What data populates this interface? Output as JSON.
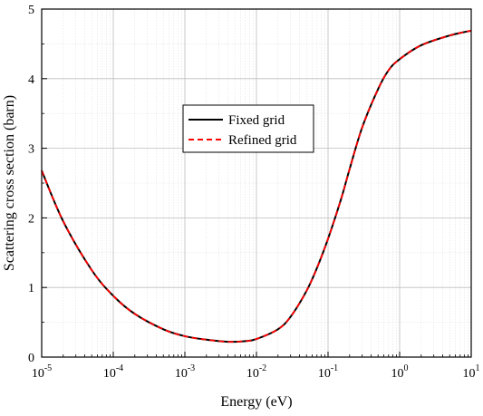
{
  "chart_data": {
    "type": "line",
    "title": "",
    "xlabel": "Energy (eV)",
    "ylabel": "Scattering cross section (barn)",
    "xscale": "log",
    "xlim": [
      1e-05,
      10
    ],
    "ylim": [
      0,
      5
    ],
    "grid": true,
    "legend_position": "center-left",
    "x_tick_labels": [
      {
        "base": "10",
        "exp": "-5"
      },
      {
        "base": "10",
        "exp": "-4"
      },
      {
        "base": "10",
        "exp": "-3"
      },
      {
        "base": "10",
        "exp": "-2"
      },
      {
        "base": "10",
        "exp": "-1"
      },
      {
        "base": "10",
        "exp": "0"
      },
      {
        "base": "10",
        "exp": "1"
      }
    ],
    "y_tick_labels": [
      "0",
      "1",
      "2",
      "3",
      "4",
      "5"
    ],
    "x": [
      1e-05,
      2e-05,
      5e-05,
      0.0001,
      0.0002,
      0.0005,
      0.001,
      0.002,
      0.004,
      0.007,
      0.01,
      0.02,
      0.03,
      0.05,
      0.07,
      0.1,
      0.15,
      0.2,
      0.3,
      0.5,
      0.7,
      1,
      2,
      5,
      10
    ],
    "series": [
      {
        "name": "Fixed grid",
        "color": "#000000",
        "dash": "solid",
        "values": [
          2.68,
          1.95,
          1.25,
          0.88,
          0.62,
          0.4,
          0.3,
          0.25,
          0.22,
          0.23,
          0.26,
          0.4,
          0.58,
          0.95,
          1.28,
          1.7,
          2.25,
          2.7,
          3.3,
          3.85,
          4.12,
          4.28,
          4.48,
          4.62,
          4.69
        ]
      },
      {
        "name": "Refined grid",
        "color": "#ff0000",
        "dash": "dashed",
        "values": [
          2.68,
          1.95,
          1.25,
          0.88,
          0.62,
          0.4,
          0.3,
          0.25,
          0.22,
          0.23,
          0.26,
          0.4,
          0.58,
          0.95,
          1.28,
          1.7,
          2.25,
          2.7,
          3.3,
          3.85,
          4.12,
          4.28,
          4.48,
          4.62,
          4.69
        ]
      }
    ]
  }
}
